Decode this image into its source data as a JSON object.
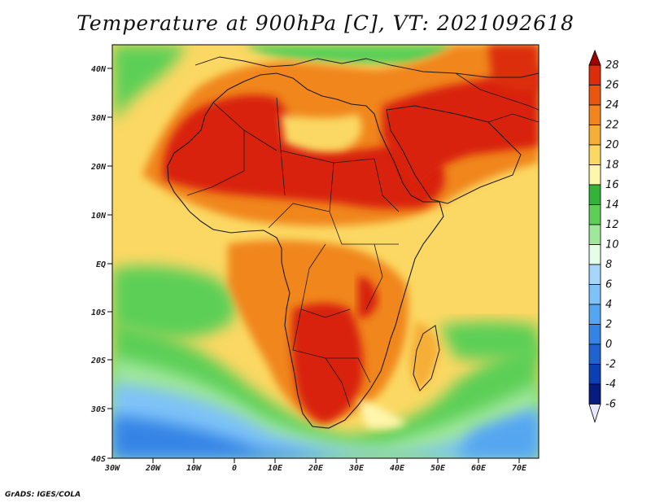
{
  "title": "Temperature at 900hPa [C], VT: 2021092618",
  "credit": "GrADS: IGES/COLA",
  "lat_labels": [
    "40N",
    "30N",
    "20N",
    "10N",
    "EQ",
    "10S",
    "20S",
    "30S",
    "40S"
  ],
  "lon_labels": [
    "30W",
    "20W",
    "10W",
    "0",
    "10E",
    "20E",
    "30E",
    "40E",
    "50E",
    "60E",
    "70E"
  ],
  "colorbar": {
    "levels": [
      "28",
      "26",
      "24",
      "22",
      "20",
      "18",
      "16",
      "14",
      "12",
      "10",
      "8",
      "6",
      "4",
      "2",
      "0",
      "-2",
      "-4",
      "-6"
    ],
    "colors": [
      "#a00000",
      "#dc2d0a",
      "#e8560f",
      "#f0861d",
      "#f5af38",
      "#fbd863",
      "#fef6ac",
      "#33b33a",
      "#5ccf56",
      "#9fe79b",
      "#e4fee8",
      "#a6d6fb",
      "#7ec2f8",
      "#55a6f0",
      "#3584e5",
      "#1e63d0",
      "#0c3fb1",
      "#061c7e"
    ]
  },
  "colors": {
    "hot": "#d8210a",
    "warm": "#f0861d",
    "mild": "#fbd863",
    "green": "#5ccf56",
    "cool": "#9fe79b",
    "cold": "#7ec2f8",
    "coldest": "#3584e5",
    "border": "#1a1a1a"
  }
}
